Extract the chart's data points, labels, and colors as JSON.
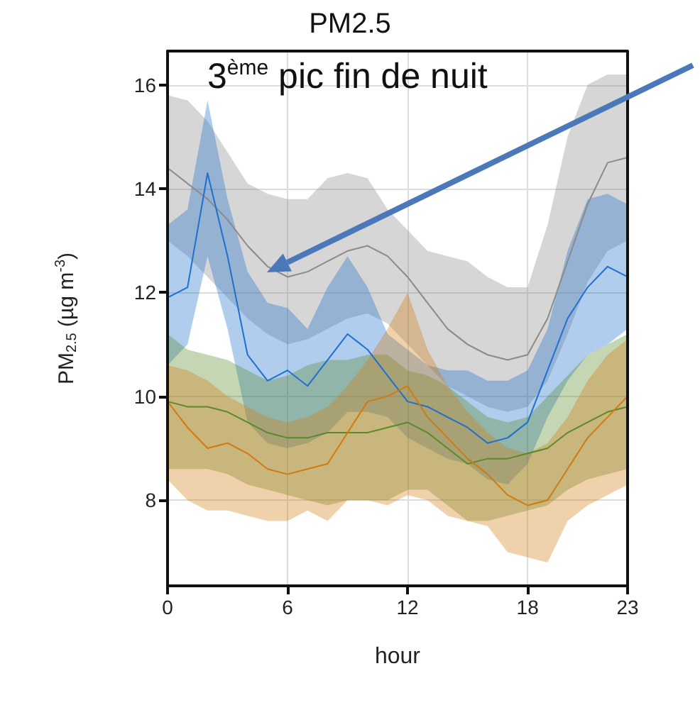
{
  "chart_data": {
    "type": "line",
    "title": "PM2.5",
    "xlabel": "hour",
    "ylabel": "PM$_{2.5}$ (µg m$^{-3}$)",
    "x": [
      0,
      1,
      2,
      3,
      4,
      5,
      6,
      7,
      8,
      9,
      10,
      11,
      12,
      13,
      14,
      15,
      16,
      17,
      18,
      19,
      20,
      21,
      22,
      23
    ],
    "xlim": [
      0,
      23
    ],
    "xticks": [
      0,
      6,
      12,
      18,
      23
    ],
    "ylim": [
      6.35,
      16.65
    ],
    "yticks": [
      8,
      10,
      12,
      14,
      16
    ],
    "grid": true,
    "marker": "none",
    "annotations": [
      "3$^{ème}$ pic fin de nuit"
    ],
    "series": [
      {
        "color": "#8a8a8a",
        "values": [
          14.4,
          14.1,
          13.8,
          13.4,
          12.9,
          12.5,
          12.3,
          12.4,
          12.6,
          12.8,
          12.9,
          12.7,
          12.3,
          11.8,
          11.3,
          11.0,
          10.8,
          10.7,
          10.8,
          11.5,
          12.6,
          13.7,
          14.5,
          14.6
        ],
        "upper": [
          15.8,
          15.7,
          15.3,
          14.7,
          14.1,
          13.9,
          13.8,
          13.8,
          14.2,
          14.3,
          14.2,
          13.6,
          13.2,
          12.8,
          12.7,
          12.6,
          12.3,
          12.1,
          12.1,
          13.3,
          15.0,
          16.0,
          16.2,
          16.2
        ],
        "lower": [
          13.0,
          12.7,
          12.3,
          11.9,
          11.5,
          11.2,
          11.0,
          11.1,
          11.3,
          11.5,
          11.6,
          11.4,
          11.0,
          10.6,
          10.2,
          10.0,
          9.8,
          9.7,
          9.8,
          10.3,
          11.2,
          12.2,
          12.8,
          13.0
        ]
      },
      {
        "color": "#1f6fcf",
        "values": [
          11.9,
          12.1,
          14.3,
          12.7,
          10.8,
          10.3,
          10.5,
          10.2,
          10.7,
          11.2,
          10.9,
          10.4,
          9.9,
          9.8,
          9.6,
          9.4,
          9.1,
          9.2,
          9.5,
          10.5,
          11.5,
          12.1,
          12.5,
          12.3
        ],
        "upper": [
          13.3,
          13.6,
          15.7,
          13.8,
          12.4,
          11.8,
          11.7,
          11.3,
          12.1,
          12.7,
          12.1,
          11.2,
          10.9,
          10.6,
          10.5,
          10.5,
          10.3,
          10.3,
          10.5,
          11.3,
          12.8,
          13.8,
          13.9,
          13.7
        ],
        "lower": [
          10.6,
          11.0,
          12.7,
          11.3,
          9.5,
          9.1,
          9.0,
          9.1,
          9.3,
          9.7,
          9.7,
          9.6,
          9.2,
          9.0,
          8.8,
          8.7,
          8.4,
          8.3,
          8.7,
          9.6,
          10.3,
          10.8,
          11.0,
          11.3
        ]
      },
      {
        "color": "#5a8a2a",
        "values": [
          9.9,
          9.8,
          9.8,
          9.7,
          9.5,
          9.3,
          9.2,
          9.2,
          9.3,
          9.3,
          9.3,
          9.4,
          9.5,
          9.3,
          9.0,
          8.7,
          8.8,
          8.8,
          8.9,
          9.0,
          9.3,
          9.5,
          9.7,
          9.8
        ],
        "upper": [
          11.2,
          10.9,
          10.8,
          10.7,
          10.5,
          10.3,
          10.4,
          10.6,
          10.7,
          10.7,
          10.8,
          10.8,
          10.5,
          10.4,
          10.2,
          9.9,
          9.6,
          9.5,
          9.6,
          10.0,
          10.4,
          10.8,
          11.0,
          11.2
        ],
        "lower": [
          8.6,
          8.6,
          8.6,
          8.5,
          8.3,
          8.2,
          8.1,
          8.0,
          7.9,
          8.0,
          8.0,
          8.0,
          8.2,
          8.2,
          7.9,
          7.6,
          7.6,
          7.7,
          7.8,
          7.9,
          8.2,
          8.4,
          8.5,
          8.6
        ]
      },
      {
        "color": "#d07a10",
        "values": [
          9.9,
          9.4,
          9.0,
          9.1,
          8.9,
          8.6,
          8.5,
          8.6,
          8.7,
          9.3,
          9.9,
          10.0,
          10.2,
          9.6,
          9.2,
          8.8,
          8.5,
          8.1,
          7.9,
          8.0,
          8.6,
          9.2,
          9.6,
          10.0
        ],
        "upper": [
          10.6,
          10.5,
          10.3,
          10.0,
          9.8,
          9.6,
          9.5,
          9.6,
          9.8,
          10.2,
          10.7,
          11.3,
          12.0,
          10.9,
          10.2,
          9.7,
          9.3,
          9.0,
          8.9,
          9.1,
          9.6,
          10.3,
          10.8,
          11.1
        ],
        "lower": [
          8.4,
          8.0,
          7.8,
          7.8,
          7.7,
          7.6,
          7.6,
          7.8,
          7.6,
          8.0,
          8.0,
          7.9,
          8.1,
          8.0,
          7.7,
          7.6,
          7.5,
          7.0,
          6.9,
          6.8,
          7.6,
          7.9,
          8.1,
          8.3
        ]
      }
    ]
  }
}
